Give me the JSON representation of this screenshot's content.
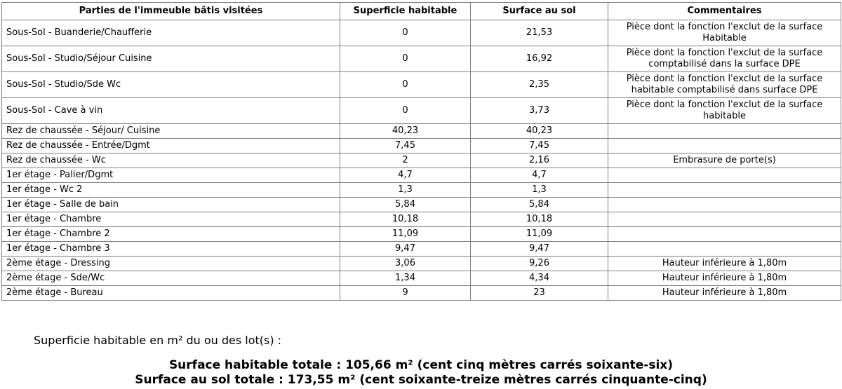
{
  "table": {
    "headers": {
      "part": "Parties de l'immeuble bâtis visitées",
      "habitable": "Superficie habitable",
      "sol": "Surface au sol",
      "comment": "Commentaires"
    },
    "rows": [
      {
        "part": "Sous-Sol - Buanderie/Chaufferie",
        "habitable": "0",
        "sol": "21,53",
        "comment_line1": "Pièce dont la fonction l'exclut de la surface",
        "comment_line2": "Habitable"
      },
      {
        "part": "Sous-Sol - Studio/Séjour Cuisine",
        "habitable": "0",
        "sol": "16,92",
        "comment_line1": "Pièce dont la fonction l'exclut de la surface",
        "comment_line2": "comptabilisé dans la surface DPE"
      },
      {
        "part": "Sous-Sol - Studio/Sde Wc",
        "habitable": "0",
        "sol": "2,35",
        "comment_line1": "Pièce dont la fonction l'exclut de la surface",
        "comment_line2": "habitable comptabilisé dans surface DPE"
      },
      {
        "part": "Sous-Sol - Cave à vin",
        "habitable": "0",
        "sol": "3,73",
        "comment_line1": "Pièce dont la fonction l'exclut de la surface",
        "comment_line2": "habitable"
      },
      {
        "part": "Rez de chaussée - Séjour/ Cuisine",
        "habitable": "40,23",
        "sol": "40,23",
        "comment_line1": "",
        "comment_line2": ""
      },
      {
        "part": "Rez de chaussée - Entrée/Dgmt",
        "habitable": "7,45",
        "sol": "7,45",
        "comment_line1": "",
        "comment_line2": ""
      },
      {
        "part": "Rez de chaussée - Wc",
        "habitable": "2",
        "sol": "2,16",
        "comment_line1": "Embrasure de porte(s)",
        "comment_line2": ""
      },
      {
        "part": "1er étage - Palier/Dgmt",
        "habitable": "4,7",
        "sol": "4,7",
        "comment_line1": "",
        "comment_line2": ""
      },
      {
        "part": "1er étage - Wc 2",
        "habitable": "1,3",
        "sol": "1,3",
        "comment_line1": "",
        "comment_line2": ""
      },
      {
        "part": "1er étage - Salle de bain",
        "habitable": "5,84",
        "sol": "5,84",
        "comment_line1": "",
        "comment_line2": ""
      },
      {
        "part": "1er étage - Chambre",
        "habitable": "10,18",
        "sol": "10,18",
        "comment_line1": "",
        "comment_line2": ""
      },
      {
        "part": "1er étage - Chambre 2",
        "habitable": "11,09",
        "sol": "11,09",
        "comment_line1": "",
        "comment_line2": ""
      },
      {
        "part": "1er étage - Chambre 3",
        "habitable": "9,47",
        "sol": "9,47",
        "comment_line1": "",
        "comment_line2": ""
      },
      {
        "part": "2ème étage - Dressing",
        "habitable": "3,06",
        "sol": "9,26",
        "comment_line1": "Hauteur inférieure à 1,80m",
        "comment_line2": ""
      },
      {
        "part": "2ème étage - Sde/Wc",
        "habitable": "1,34",
        "sol": "4,34",
        "comment_line1": "Hauteur inférieure à 1,80m",
        "comment_line2": ""
      },
      {
        "part": "2ème étage - Bureau",
        "habitable": "9",
        "sol": "23",
        "comment_line1": "Hauteur inférieure à 1,80m",
        "comment_line2": ""
      }
    ]
  },
  "summary": {
    "label": "Superficie habitable en m² du ou des lot(s) :",
    "total_habitable": "Surface habitable totale : 105,66 m² (cent cinq mètres carrés soixante-six)",
    "total_sol": "Surface au sol totale : 173,55 m² (cent soixante-treize mètres carrés cinquante-cinq)"
  }
}
